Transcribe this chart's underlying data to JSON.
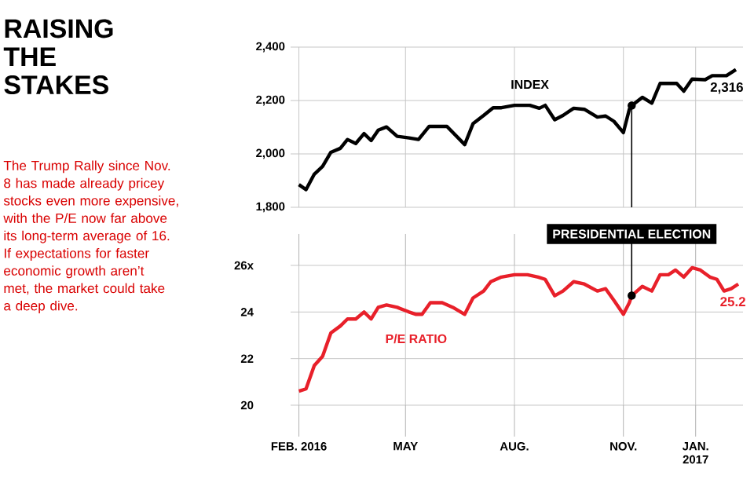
{
  "chart_data": [
    {
      "type": "line",
      "title": "RAISING THE STAKES",
      "subtitle": "The Trump Rally since Nov. 8 has made already pricey stocks even more expensive, with the P/E now far above its long-term average of 16. If expectations for faster economic growth aren’t met, the market could take a deep dive.",
      "x": [
        "2016-02-01",
        "2016-02-07",
        "2016-02-14",
        "2016-02-21",
        "2016-02-28",
        "2016-03-07",
        "2016-03-13",
        "2016-03-20",
        "2016-03-27",
        "2016-04-02",
        "2016-04-08",
        "2016-04-15",
        "2016-04-24",
        "2016-05-04",
        "2016-05-12",
        "2016-05-21",
        "2016-06-05",
        "2016-06-20",
        "2016-06-27",
        "2016-07-06",
        "2016-07-14",
        "2016-07-21",
        "2016-08-01",
        "2016-08-14",
        "2016-08-22",
        "2016-08-27",
        "2016-09-04",
        "2016-09-11",
        "2016-09-20",
        "2016-09-29",
        "2016-10-10",
        "2016-10-17",
        "2016-10-24",
        "2016-11-01",
        "2016-11-06",
        "2016-11-08",
        "2016-11-17",
        "2016-11-25",
        "2016-12-02",
        "2016-12-09",
        "2016-12-16",
        "2016-12-22",
        "2016-12-29",
        "2017-01-09",
        "2017-01-15",
        "2017-01-27",
        "2017-02-04"
      ],
      "series": [
        {
          "name": "INDEX",
          "color": "#000000",
          "values": [
            1885,
            1866,
            1924,
            1953,
            2006,
            2021,
            2054,
            2039,
            2076,
            2050,
            2089,
            2101,
            2066,
            2060,
            2054,
            2103,
            2103,
            2035,
            2113,
            2144,
            2173,
            2173,
            2182,
            2182,
            2171,
            2182,
            2128,
            2144,
            2171,
            2167,
            2138,
            2142,
            2122,
            2080,
            2167,
            2181,
            2212,
            2190,
            2264,
            2264,
            2264,
            2235,
            2280,
            2278,
            2293,
            2293,
            2316
          ],
          "value_labels": [
            null,
            null,
            null,
            null,
            null,
            null,
            null,
            null,
            null,
            null,
            null,
            null,
            null,
            null,
            null,
            null,
            null,
            null,
            null,
            null,
            null,
            null,
            null,
            null,
            null,
            null,
            null,
            null,
            null,
            null,
            null,
            null,
            null,
            null,
            null,
            null,
            null,
            null,
            null,
            null,
            null,
            null,
            null,
            null,
            null,
            null,
            "2,316"
          ]
        }
      ],
      "xlim": [
        "2016-01-25",
        "2017-02-10"
      ],
      "xticks": [
        {
          "value": "2016-02-01",
          "label": null
        },
        {
          "value": "2016-05-01",
          "label": null
        },
        {
          "value": "2016-08-01",
          "label": null
        },
        {
          "value": "2016-11-01",
          "label": null
        },
        {
          "value": "2017-01-01",
          "label": null
        }
      ],
      "ylim": [
        1800,
        2400
      ],
      "yticks": [
        {
          "value": 1800,
          "label": "1,800"
        },
        {
          "value": 2000,
          "label": "2,000"
        },
        {
          "value": 2200,
          "label": "2,200"
        },
        {
          "value": 2400,
          "label": "2,400"
        }
      ],
      "grid": true,
      "tick_labels": "y",
      "ref_lines": [
        {
          "axis": "x",
          "value": "2016-11-08"
        }
      ]
    },
    {
      "type": "line",
      "x": [
        "2016-02-01",
        "2016-02-07",
        "2016-02-14",
        "2016-02-21",
        "2016-02-28",
        "2016-03-07",
        "2016-03-13",
        "2016-03-20",
        "2016-03-27",
        "2016-04-02",
        "2016-04-08",
        "2016-04-15",
        "2016-04-24",
        "2016-05-04",
        "2016-05-10",
        "2016-05-15",
        "2016-05-22",
        "2016-06-01",
        "2016-06-10",
        "2016-06-20",
        "2016-06-27",
        "2016-07-06",
        "2016-07-12",
        "2016-07-21",
        "2016-08-01",
        "2016-08-12",
        "2016-08-21",
        "2016-08-27",
        "2016-09-04",
        "2016-09-11",
        "2016-09-20",
        "2016-09-29",
        "2016-10-10",
        "2016-10-17",
        "2016-10-24",
        "2016-11-01",
        "2016-11-06",
        "2016-11-08",
        "2016-11-17",
        "2016-11-25",
        "2016-12-02",
        "2016-12-09",
        "2016-12-15",
        "2016-12-22",
        "2016-12-29",
        "2017-01-05",
        "2017-01-13",
        "2017-01-19",
        "2017-01-25",
        "2017-01-31",
        "2017-02-06"
      ],
      "series": [
        {
          "name": "P/E RATIO",
          "color": "#e8202a",
          "values": [
            20.6,
            20.7,
            21.7,
            22.1,
            23.1,
            23.4,
            23.7,
            23.7,
            24.0,
            23.7,
            24.2,
            24.3,
            24.2,
            24.0,
            23.9,
            23.9,
            24.4,
            24.4,
            24.2,
            23.9,
            24.6,
            24.9,
            25.3,
            25.5,
            25.6,
            25.6,
            25.5,
            25.4,
            24.7,
            24.9,
            25.3,
            25.2,
            24.9,
            25.0,
            24.5,
            23.9,
            24.4,
            24.7,
            25.1,
            24.9,
            25.6,
            25.6,
            25.8,
            25.5,
            25.9,
            25.8,
            25.5,
            25.4,
            24.9,
            25.0,
            25.2
          ],
          "value_labels": [
            null,
            null,
            null,
            null,
            null,
            null,
            null,
            null,
            null,
            null,
            null,
            null,
            null,
            null,
            null,
            null,
            null,
            null,
            null,
            null,
            null,
            null,
            null,
            null,
            null,
            null,
            null,
            null,
            null,
            null,
            null,
            null,
            null,
            null,
            null,
            null,
            null,
            null,
            null,
            null,
            null,
            null,
            null,
            null,
            null,
            null,
            null,
            null,
            null,
            null,
            "25.2"
          ]
        }
      ],
      "xlim": [
        "2016-01-25",
        "2017-02-10"
      ],
      "xticks": [
        {
          "value": "2016-02-01",
          "label": "FEB. 2016"
        },
        {
          "value": "2016-05-01",
          "label": "MAY"
        },
        {
          "value": "2016-08-01",
          "label": "AUG."
        },
        {
          "value": "2016-11-01",
          "label": "NOV."
        },
        {
          "value": "2017-01-01",
          "label": "JAN. 2017"
        }
      ],
      "ylim": [
        20,
        26
      ],
      "yticks": [
        20,
        22,
        24,
        {
          "value": 26,
          "label": "26x"
        }
      ],
      "grid": true,
      "ref_lines": [
        {
          "axis": "x",
          "value": "2016-11-08",
          "label": "PRESIDENTIAL ELECTION"
        }
      ]
    }
  ]
}
